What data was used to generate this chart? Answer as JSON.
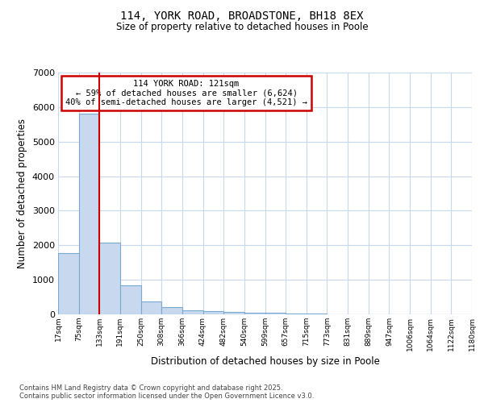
{
  "title1": "114, YORK ROAD, BROADSTONE, BH18 8EX",
  "title2": "Size of property relative to detached houses in Poole",
  "xlabel": "Distribution of detached houses by size in Poole",
  "ylabel": "Number of detached properties",
  "bar_labels": [
    "17sqm",
    "75sqm",
    "133sqm",
    "191sqm",
    "250sqm",
    "308sqm",
    "366sqm",
    "424sqm",
    "482sqm",
    "540sqm",
    "599sqm",
    "657sqm",
    "715sqm",
    "773sqm",
    "831sqm",
    "889sqm",
    "947sqm",
    "1006sqm",
    "1064sqm",
    "1122sqm",
    "1180sqm"
  ],
  "bar_heights": [
    1780,
    5820,
    2080,
    830,
    370,
    210,
    120,
    100,
    75,
    55,
    40,
    25,
    15,
    10,
    7,
    5,
    3,
    2,
    1,
    1
  ],
  "bar_color": "#c8d8ee",
  "bar_edge_color": "#7aaad0",
  "red_line_x": 2,
  "annotation_line1": "114 YORK ROAD: 121sqm",
  "annotation_line2": "← 59% of detached houses are smaller (6,624)",
  "annotation_line3": "40% of semi-detached houses are larger (4,521) →",
  "annotation_box_color": "#ffffff",
  "annotation_border_color": "#cc0000",
  "grid_color": "#c8d8ee",
  "background_color": "#ffffff",
  "plot_bg_color": "#ffffff",
  "footer1": "Contains HM Land Registry data © Crown copyright and database right 2025.",
  "footer2": "Contains public sector information licensed under the Open Government Licence v3.0.",
  "ylim_max": 7000,
  "yticks": [
    0,
    1000,
    2000,
    3000,
    4000,
    5000,
    6000,
    7000
  ]
}
